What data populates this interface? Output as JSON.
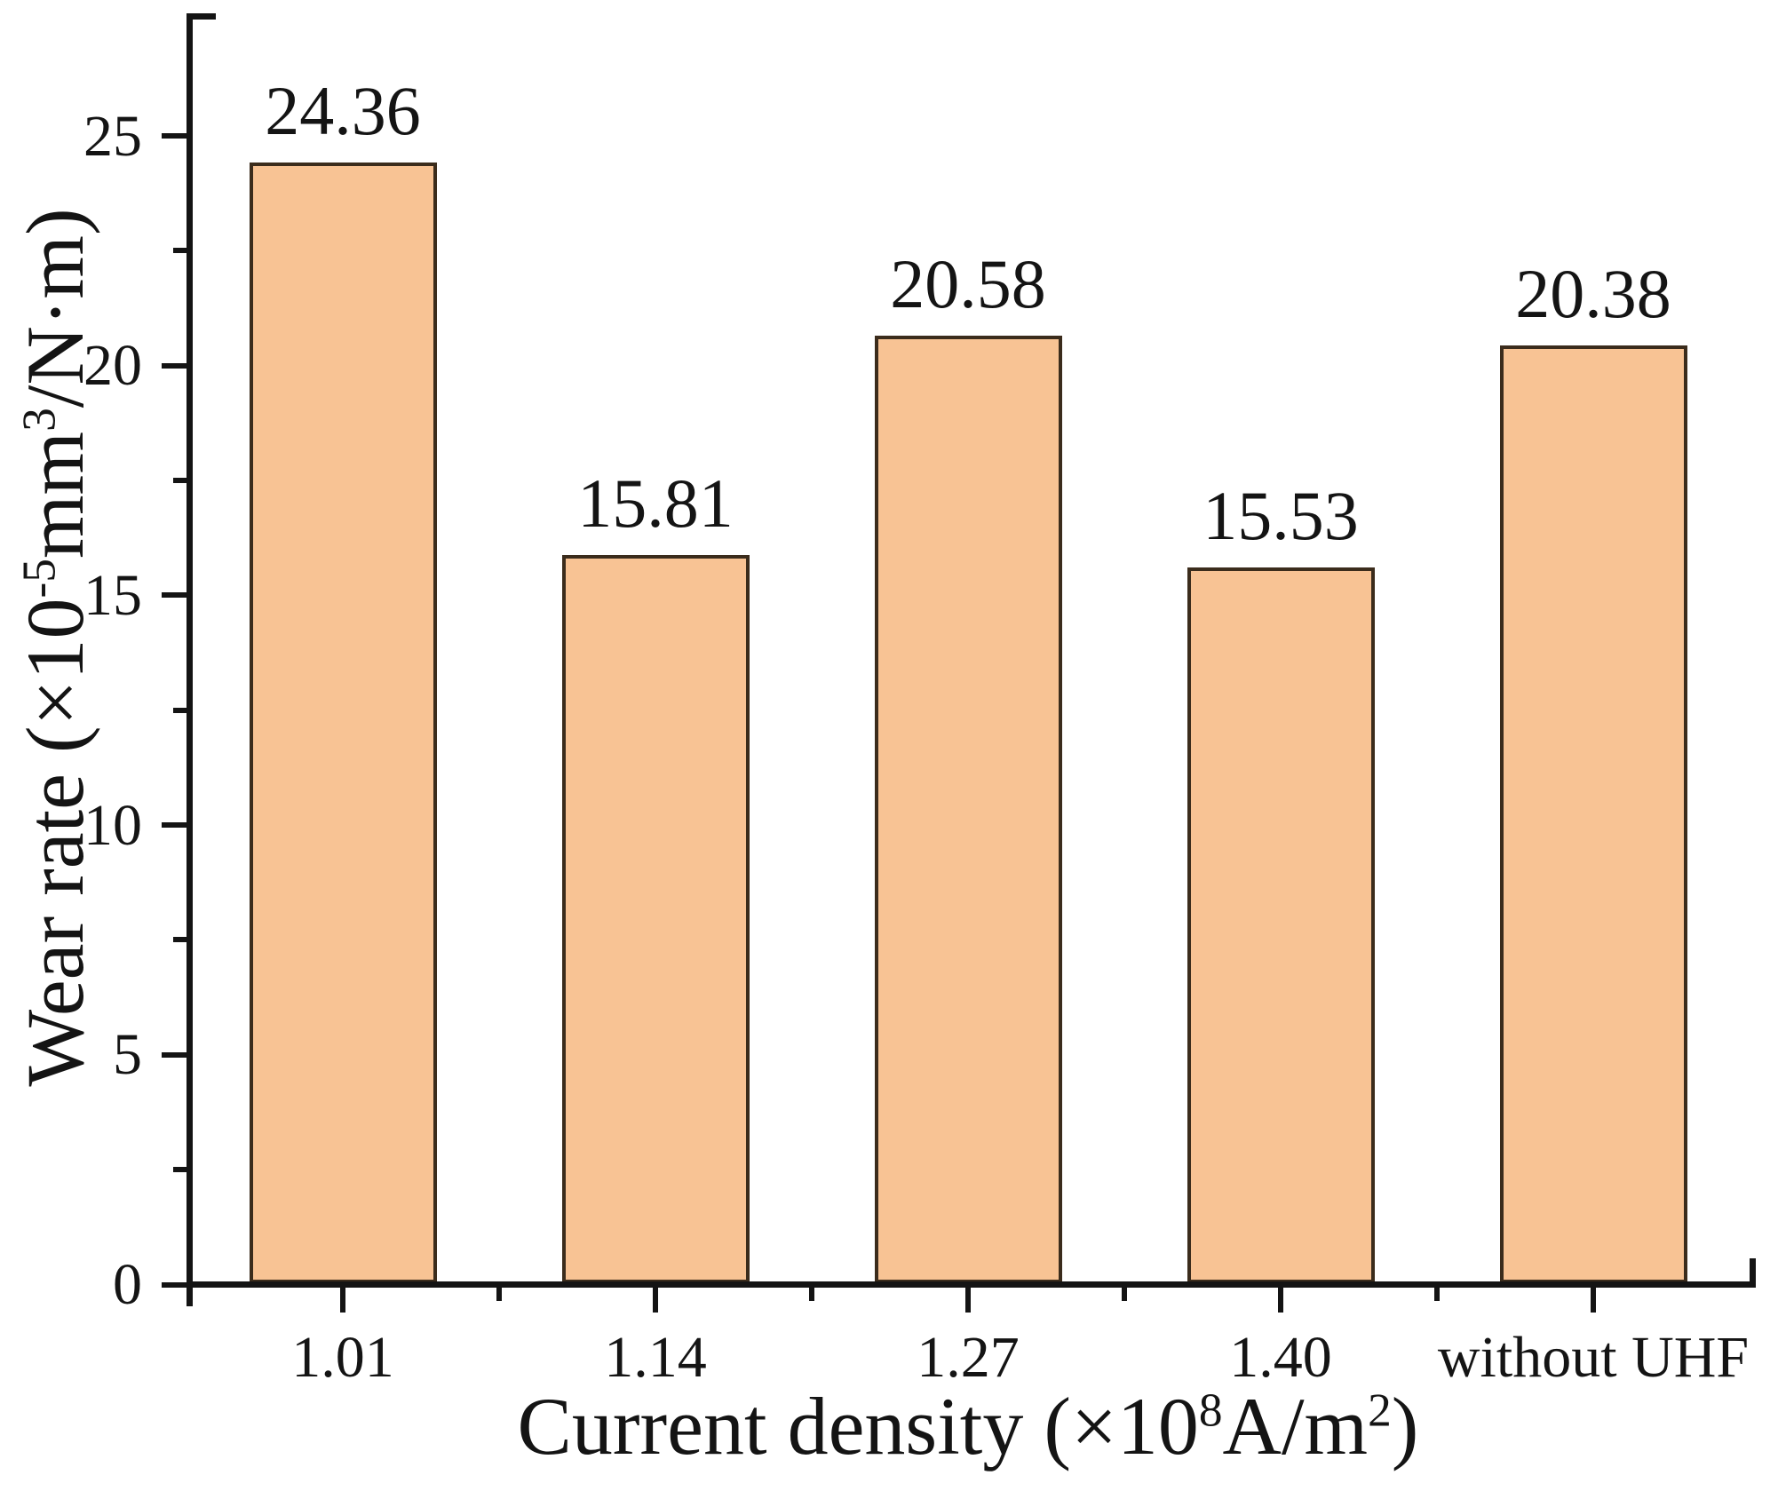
{
  "chart_data": {
    "type": "bar",
    "categories": [
      "1.01",
      "1.14",
      "1.27",
      "1.40",
      "without UHF"
    ],
    "values": [
      24.36,
      15.81,
      20.58,
      15.53,
      20.38
    ],
    "bar_value_labels": [
      "24.36",
      "15.81",
      "20.58",
      "15.53",
      "20.38"
    ],
    "title": "",
    "xlabel_plain": "Current density (×10⁸A/m²)",
    "ylabel_plain": "Wear rate (×10⁻⁵mm³/N·m)",
    "xlabel_parts": [
      {
        "t": "Current density (×10"
      },
      {
        "t": "8",
        "sup": true
      },
      {
        "t": "A/m"
      },
      {
        "t": "2",
        "sup": true
      },
      {
        "t": ")"
      }
    ],
    "ylabel_parts": [
      {
        "t": "Wear rate (×10"
      },
      {
        "t": "-5",
        "sup": true
      },
      {
        "t": "mm"
      },
      {
        "t": "3",
        "sup": true
      },
      {
        "t": "/N·m)"
      }
    ],
    "y_major_ticks": [
      0,
      5,
      10,
      15,
      20,
      25
    ],
    "y_major_tick_labels": [
      "0",
      "5",
      "10",
      "15",
      "20",
      "25"
    ],
    "y_minor_ticks": [
      2.5,
      7.5,
      12.5,
      17.5,
      22.5
    ],
    "ylim": [
      0,
      27.6
    ],
    "grid": false,
    "legend": "none",
    "colors": {
      "bar_fill": "#F8C394",
      "bar_border": "#3B2C1C",
      "axis": "#141414",
      "text": "#141414",
      "background": "#FFFFFF"
    }
  }
}
